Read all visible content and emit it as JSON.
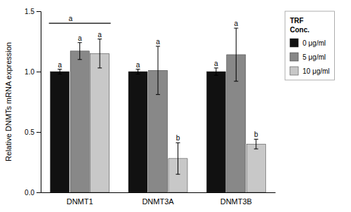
{
  "chart_data": {
    "type": "bar",
    "categories": [
      "DNMT1",
      "DNMT3A",
      "DNMT3B"
    ],
    "series": [
      {
        "name": "0 μg/ml",
        "color": "#111111",
        "values": [
          1.0,
          1.0,
          1.0
        ],
        "errors": [
          0.02,
          0.02,
          0.03
        ],
        "letters": [
          "a",
          "a",
          "a"
        ]
      },
      {
        "name": "5 μg/ml",
        "color": "#888888",
        "values": [
          1.17,
          1.01,
          1.14
        ],
        "errors": [
          0.07,
          0.2,
          0.22
        ],
        "letters": [
          "a",
          "a",
          "a"
        ]
      },
      {
        "name": "10 μg/ml",
        "color": "#c8c8c8",
        "values": [
          1.15,
          0.28,
          0.4
        ],
        "errors": [
          0.12,
          0.13,
          0.04
        ],
        "letters": [
          "a",
          "b",
          "b"
        ]
      }
    ],
    "ylabel": "Relative DNMTs mRNA expression",
    "legend_title": "TRF\nConc.",
    "legend": "right",
    "annotations": [
      {
        "text": "a",
        "y": 1.4,
        "category": "DNMT1"
      }
    ],
    "ylim": [
      0,
      1.5
    ],
    "yticks": [
      {
        "value": 0,
        "label": "0.0"
      },
      0.5,
      {
        "value": 1,
        "label": "1.0"
      },
      1.5
    ],
    "grid": false
  }
}
